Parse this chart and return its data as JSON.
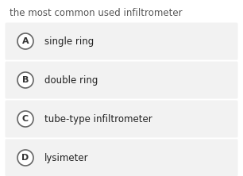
{
  "title": "the most common used infiltrometer",
  "title_fontsize": 8.5,
  "title_color": "#555555",
  "background_color": "#ffffff",
  "options": [
    {
      "label": "A",
      "text": "single ring"
    },
    {
      "label": "B",
      "text": "double ring"
    },
    {
      "label": "C",
      "text": "tube-type infiltrometer"
    },
    {
      "label": "D",
      "text": "lysimeter"
    }
  ],
  "option_box_color": "#f2f2f2",
  "option_text_color": "#222222",
  "label_color": "#333333",
  "circle_edge_color": "#666666",
  "circle_face_color": "#ffffff",
  "option_fontsize": 8.5,
  "label_fontsize": 8.0,
  "figwidth": 3.06,
  "figheight": 2.22,
  "dpi": 100
}
